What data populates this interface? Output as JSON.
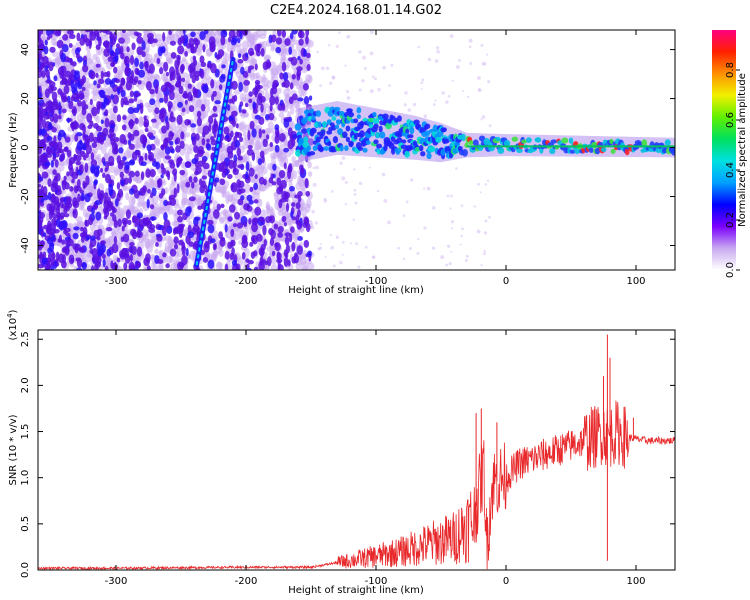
{
  "title": "C2E4.2024.168.01.14.G02",
  "colors": {
    "snr_line": "#e8282a",
    "trace_core": "#00c8e8",
    "scatter_dense": "#5a10e0",
    "scatter_light": "#c9a8f0"
  },
  "chart_data": [
    {
      "type": "heatmap",
      "name": "spectrogram",
      "xlabel": "Height of straight line (km)",
      "ylabel": "Frequency (Hz)",
      "xlim": [
        -360,
        130
      ],
      "ylim": [
        -50,
        48
      ],
      "xticks": [
        -300,
        -200,
        -100,
        0,
        100
      ],
      "yticks": [
        -40,
        -20,
        0,
        20,
        40
      ],
      "colorbar": {
        "label": "Normalized spectral amplitude",
        "range": [
          0,
          0.96
        ],
        "ticks": [
          "0.0",
          "0.2",
          "0.4",
          "0.6",
          "0.8"
        ],
        "colormap": [
          "#ffffff",
          "#c8a8f0",
          "#7a00ff",
          "#0000ff",
          "#00a0ff",
          "#00e0e0",
          "#00e060",
          "#60f000",
          "#f0f000",
          "#ff9000",
          "#ff2000",
          "#ff0080"
        ]
      },
      "noise_region_x": [
        -360,
        -150
      ],
      "signal_track": {
        "x": [
          -238,
          -210
        ],
        "y": [
          -48,
          36
        ]
      },
      "band": [
        {
          "x": -160,
          "center": 5,
          "half_width": 9
        },
        {
          "x": -130,
          "center": 8,
          "half_width": 9
        },
        {
          "x": -100,
          "center": 6,
          "half_width": 8
        },
        {
          "x": -70,
          "center": 4,
          "half_width": 7
        },
        {
          "x": -50,
          "center": 2,
          "half_width": 6
        },
        {
          "x": -30,
          "center": 1,
          "half_width": 3
        },
        {
          "x": 0,
          "center": 1,
          "half_width": 2.5
        },
        {
          "x": 130,
          "center": 0,
          "half_width": 2
        }
      ]
    },
    {
      "type": "line",
      "name": "snr",
      "xlabel": "Height of straight line (km)",
      "ylabel": "SNR (10 * v/v)",
      "yscale_label": "(x10",
      "yscale_exp": "4",
      "yscale_close": ")",
      "xlim": [
        -360,
        130
      ],
      "ylim": [
        0,
        2.6
      ],
      "xticks": [
        -300,
        -200,
        -100,
        0,
        100
      ],
      "yticks": [
        "0.0",
        "0.5",
        "1.0",
        "1.5",
        "2.0",
        "2.5"
      ],
      "series": [
        {
          "x": [
            -360,
            -300,
            -200,
            -150,
            -130,
            -100,
            -80,
            -60,
            -40,
            -25,
            -20,
            -17,
            -15,
            -10,
            0,
            10,
            20,
            30,
            40,
            50,
            60,
            70,
            75,
            78,
            80,
            85,
            90,
            100,
            110,
            130
          ],
          "y": [
            0.02,
            0.02,
            0.03,
            0.03,
            0.08,
            0.15,
            0.2,
            0.28,
            0.35,
            0.55,
            0.9,
            1.1,
            0.3,
            0.95,
            1.0,
            1.15,
            1.2,
            1.25,
            1.3,
            1.35,
            1.4,
            1.45,
            1.5,
            1.45,
            1.45,
            1.5,
            1.45,
            1.42,
            1.4,
            1.4
          ]
        }
      ],
      "spikes": [
        {
          "x": -23,
          "y": 1.7
        },
        {
          "x": -19,
          "y": 1.75
        },
        {
          "x": -7,
          "y": 1.6
        },
        {
          "x": 75,
          "y": 2.1
        },
        {
          "x": 78,
          "y": 2.55
        },
        {
          "x": 80,
          "y": 2.3
        },
        {
          "x": 78,
          "y": 0.1
        },
        {
          "x": 98,
          "y": 1.65
        }
      ]
    }
  ]
}
